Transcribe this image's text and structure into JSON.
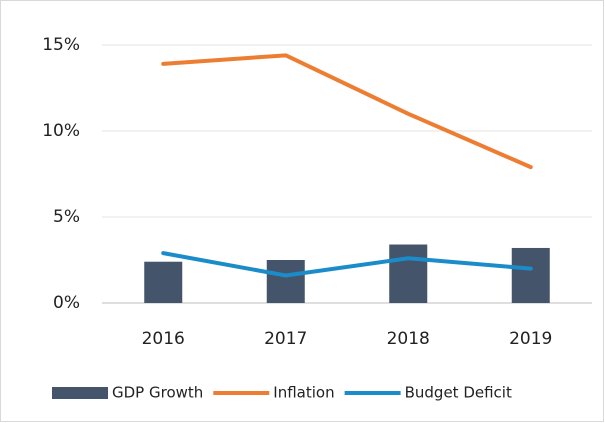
{
  "chart_data": {
    "type": "combo",
    "categories": [
      "2016",
      "2017",
      "2018",
      "2019"
    ],
    "series": [
      {
        "name": "GDP Growth",
        "type": "bar",
        "color": "#44546a",
        "values": [
          2.4,
          2.5,
          3.4,
          3.2
        ]
      },
      {
        "name": "Inflation",
        "type": "line",
        "color": "#ed7d31",
        "values": [
          13.9,
          14.4,
          11.0,
          7.9
        ]
      },
      {
        "name": "Budget Deficit",
        "type": "line",
        "color": "#1a8cc9",
        "values": [
          2.9,
          1.6,
          2.6,
          2.0
        ]
      }
    ],
    "ylim": [
      0,
      15
    ],
    "yticks": [
      {
        "value": 0,
        "label": "0%"
      },
      {
        "value": 5,
        "label": "5%"
      },
      {
        "value": 10,
        "label": "10%"
      },
      {
        "value": 15,
        "label": "15%"
      }
    ],
    "grid": true,
    "legend": "bottom"
  }
}
